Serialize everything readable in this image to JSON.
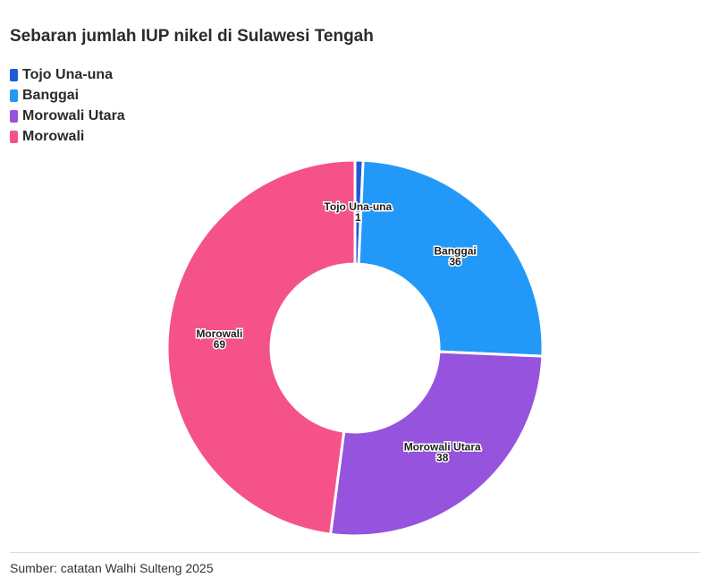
{
  "title": "Sebaran jumlah IUP nikel di Sulawesi Tengah",
  "source": "Sumber: catatan Walhi Sulteng 2025",
  "chart_data": {
    "type": "pie",
    "donut": true,
    "title": "Sebaran jumlah IUP nikel di Sulawesi Tengah",
    "legend_position": "top-left",
    "categories": [
      "Tojo Una-una",
      "Banggai",
      "Morowali Utara",
      "Morowali"
    ],
    "values": [
      1,
      36,
      38,
      69
    ],
    "colors": [
      "#1f5bd6",
      "#2299f9",
      "#9653dd",
      "#f55289"
    ]
  }
}
